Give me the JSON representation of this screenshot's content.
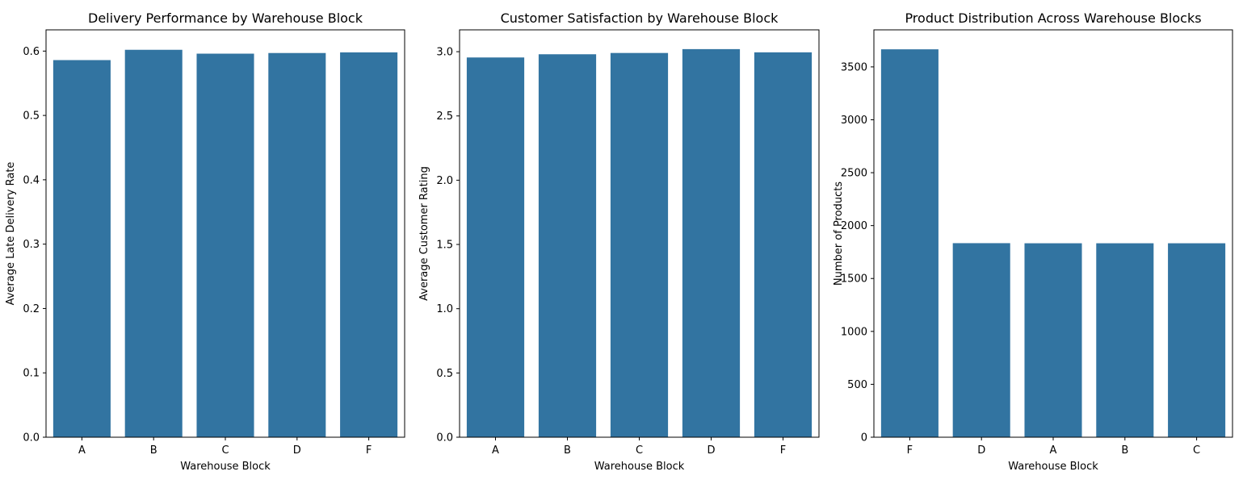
{
  "chart_data": [
    {
      "type": "bar",
      "title": "Delivery Performance by Warehouse Block",
      "xlabel": "Warehouse Block",
      "ylabel": "Average Late Delivery Rate",
      "categories": [
        "A",
        "B",
        "C",
        "D",
        "F"
      ],
      "values": [
        0.586,
        0.602,
        0.596,
        0.597,
        0.598
      ],
      "ylim": [
        0,
        0.633
      ],
      "yticks": [
        0.0,
        0.1,
        0.2,
        0.3,
        0.4,
        0.5,
        0.6
      ],
      "ytick_labels": [
        "0.0",
        "0.1",
        "0.2",
        "0.3",
        "0.4",
        "0.5",
        "0.6"
      ],
      "grid": false,
      "color": "#3274a1"
    },
    {
      "type": "bar",
      "title": "Customer Satisfaction by Warehouse Block",
      "xlabel": "Warehouse Block",
      "ylabel": "Average Customer Rating",
      "categories": [
        "A",
        "B",
        "C",
        "D",
        "F"
      ],
      "values": [
        2.955,
        2.98,
        2.99,
        3.02,
        2.995
      ],
      "ylim": [
        0,
        3.17
      ],
      "yticks": [
        0.0,
        0.5,
        1.0,
        1.5,
        2.0,
        2.5,
        3.0
      ],
      "ytick_labels": [
        "0.0",
        "0.5",
        "1.0",
        "1.5",
        "2.0",
        "2.5",
        "3.0"
      ],
      "grid": false,
      "color": "#3274a1"
    },
    {
      "type": "bar",
      "title": "Product Distribution Across Warehouse Blocks",
      "xlabel": "Warehouse Block",
      "ylabel": "Number of Products",
      "categories": [
        "F",
        "D",
        "A",
        "B",
        "C"
      ],
      "values": [
        3666,
        1834,
        1833,
        1833,
        1833
      ],
      "ylim": [
        0,
        3850
      ],
      "yticks": [
        0,
        500,
        1000,
        1500,
        2000,
        2500,
        3000,
        3500
      ],
      "ytick_labels": [
        "0",
        "500",
        "1000",
        "1500",
        "2000",
        "2500",
        "3000",
        "3500"
      ],
      "grid": false,
      "color": "#3274a1"
    }
  ]
}
